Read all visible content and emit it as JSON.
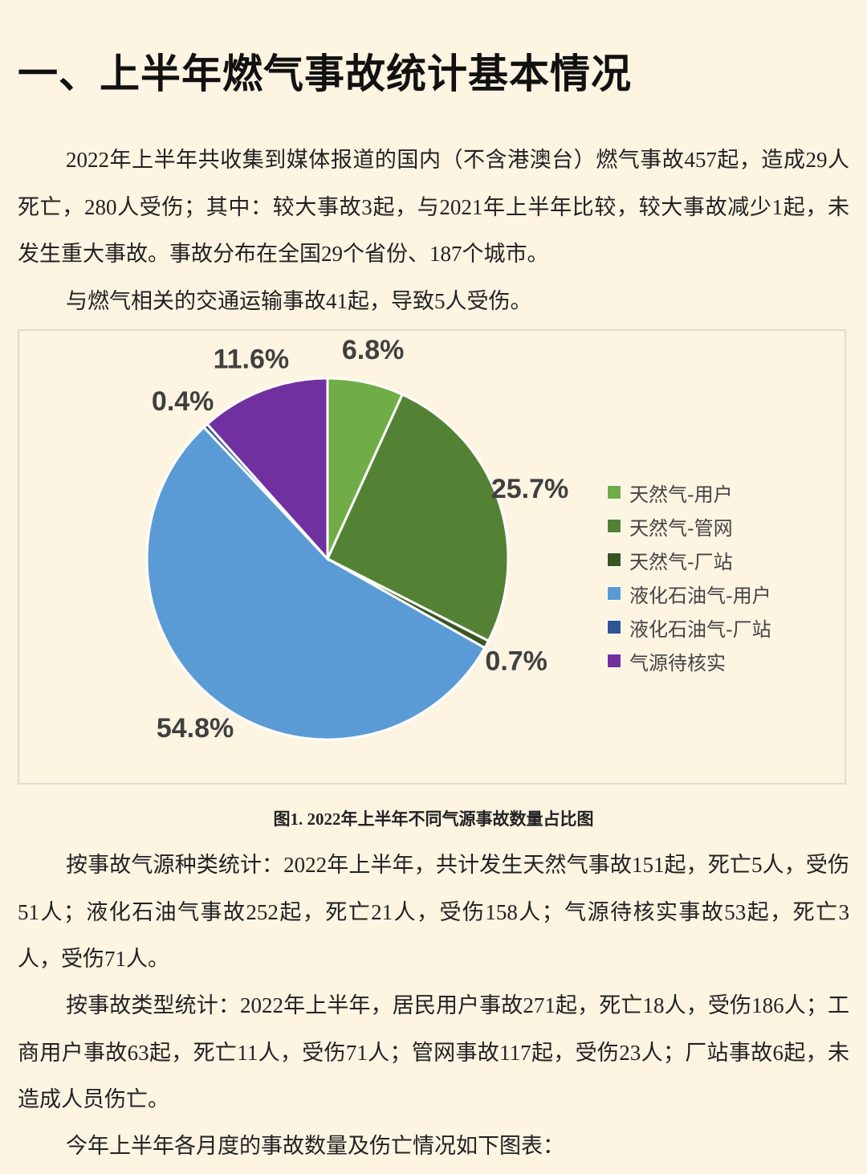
{
  "heading": "一、上半年燃气事故统计基本情况",
  "paragraphs": [
    "2022年上半年共收集到媒体报道的国内（不含港澳台）燃气事故457起，造成29人死亡，280人受伤；其中：较大事故3起，与2021年上半年比较，较大事故减少1起，未发生重大事故。事故分布在全国29个省份、187个城市。",
    "与燃气相关的交通运输事故41起，导致5人受伤。"
  ],
  "figure_caption": "图1. 2022年上半年不同气源事故数量占比图",
  "paragraphs_after": [
    "按事故气源种类统计：2022年上半年，共计发生天然气事故151起，死亡5人，受伤51人；液化石油气事故252起，死亡21人，受伤158人；气源待核实事故53起，死亡3人，受伤71人。",
    "按事故类型统计：2022年上半年，居民用户事故271起，死亡18人，受伤186人；工商用户事故63起，死亡11人，受伤71人；管网事故117起，受伤23人；厂站事故6起，未造成人员伤亡。",
    "今年上半年各月度的事故数量及伤亡情况如下图表："
  ],
  "chart_data": {
    "type": "pie",
    "title": "",
    "legend_position": "right",
    "start_angle": "top, clockwise",
    "slices": [
      {
        "name": "天然气-用户",
        "value": 6.8,
        "label": "6.8%",
        "color": "#70ad47"
      },
      {
        "name": "天然气-管网",
        "value": 25.7,
        "label": "25.7%",
        "color": "#548235"
      },
      {
        "name": "天然气-厂站",
        "value": 0.7,
        "label": "0.7%",
        "color": "#375623"
      },
      {
        "name": "液化石油气-用户",
        "value": 54.8,
        "label": "54.8%",
        "color": "#5b9bd5"
      },
      {
        "name": "液化石油气-厂站",
        "value": 0.4,
        "label": "0.4%",
        "color": "#2f5597"
      },
      {
        "name": "气源待核实",
        "value": 11.6,
        "label": "11.6%",
        "color": "#7030a0"
      }
    ]
  }
}
